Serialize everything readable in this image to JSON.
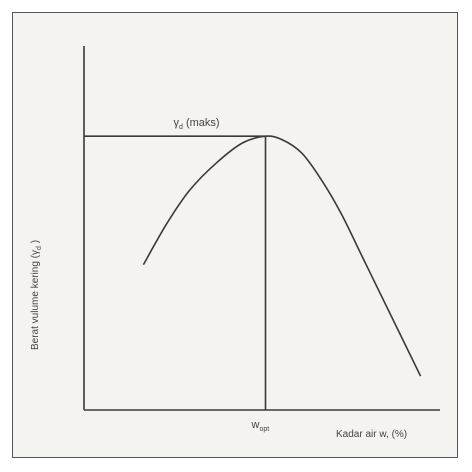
{
  "chart_data": {
    "type": "line",
    "title": "",
    "ylabel_main": "Berat vulume kering (",
    "ylabel_sym": "γ",
    "ylabel_sub": "d",
    "ylabel_close": " )",
    "xlabel": "Kadar air w, (%)",
    "peak_label_sym": "γ",
    "peak_label_sub": "d",
    "peak_label_text": " (maks)",
    "opt_label_main": "w",
    "opt_label_sub": "opt",
    "x_range": [
      0,
      100
    ],
    "y_range": [
      0,
      100
    ],
    "series": [
      {
        "x": [
          18,
          25,
          32,
          40,
          48,
          55,
          60,
          66,
          72,
          78,
          84,
          90,
          96,
          102
        ],
        "y": [
          43,
          55,
          65,
          73,
          79,
          81,
          80,
          76,
          68,
          58,
          46,
          34,
          22,
          10
        ]
      }
    ],
    "peak": {
      "x": 55,
      "y": 81
    },
    "colors": {
      "line": "#3a3a3a",
      "axis": "#3a3a3a",
      "frame": "#555555",
      "background": "#f4f3ef"
    }
  }
}
